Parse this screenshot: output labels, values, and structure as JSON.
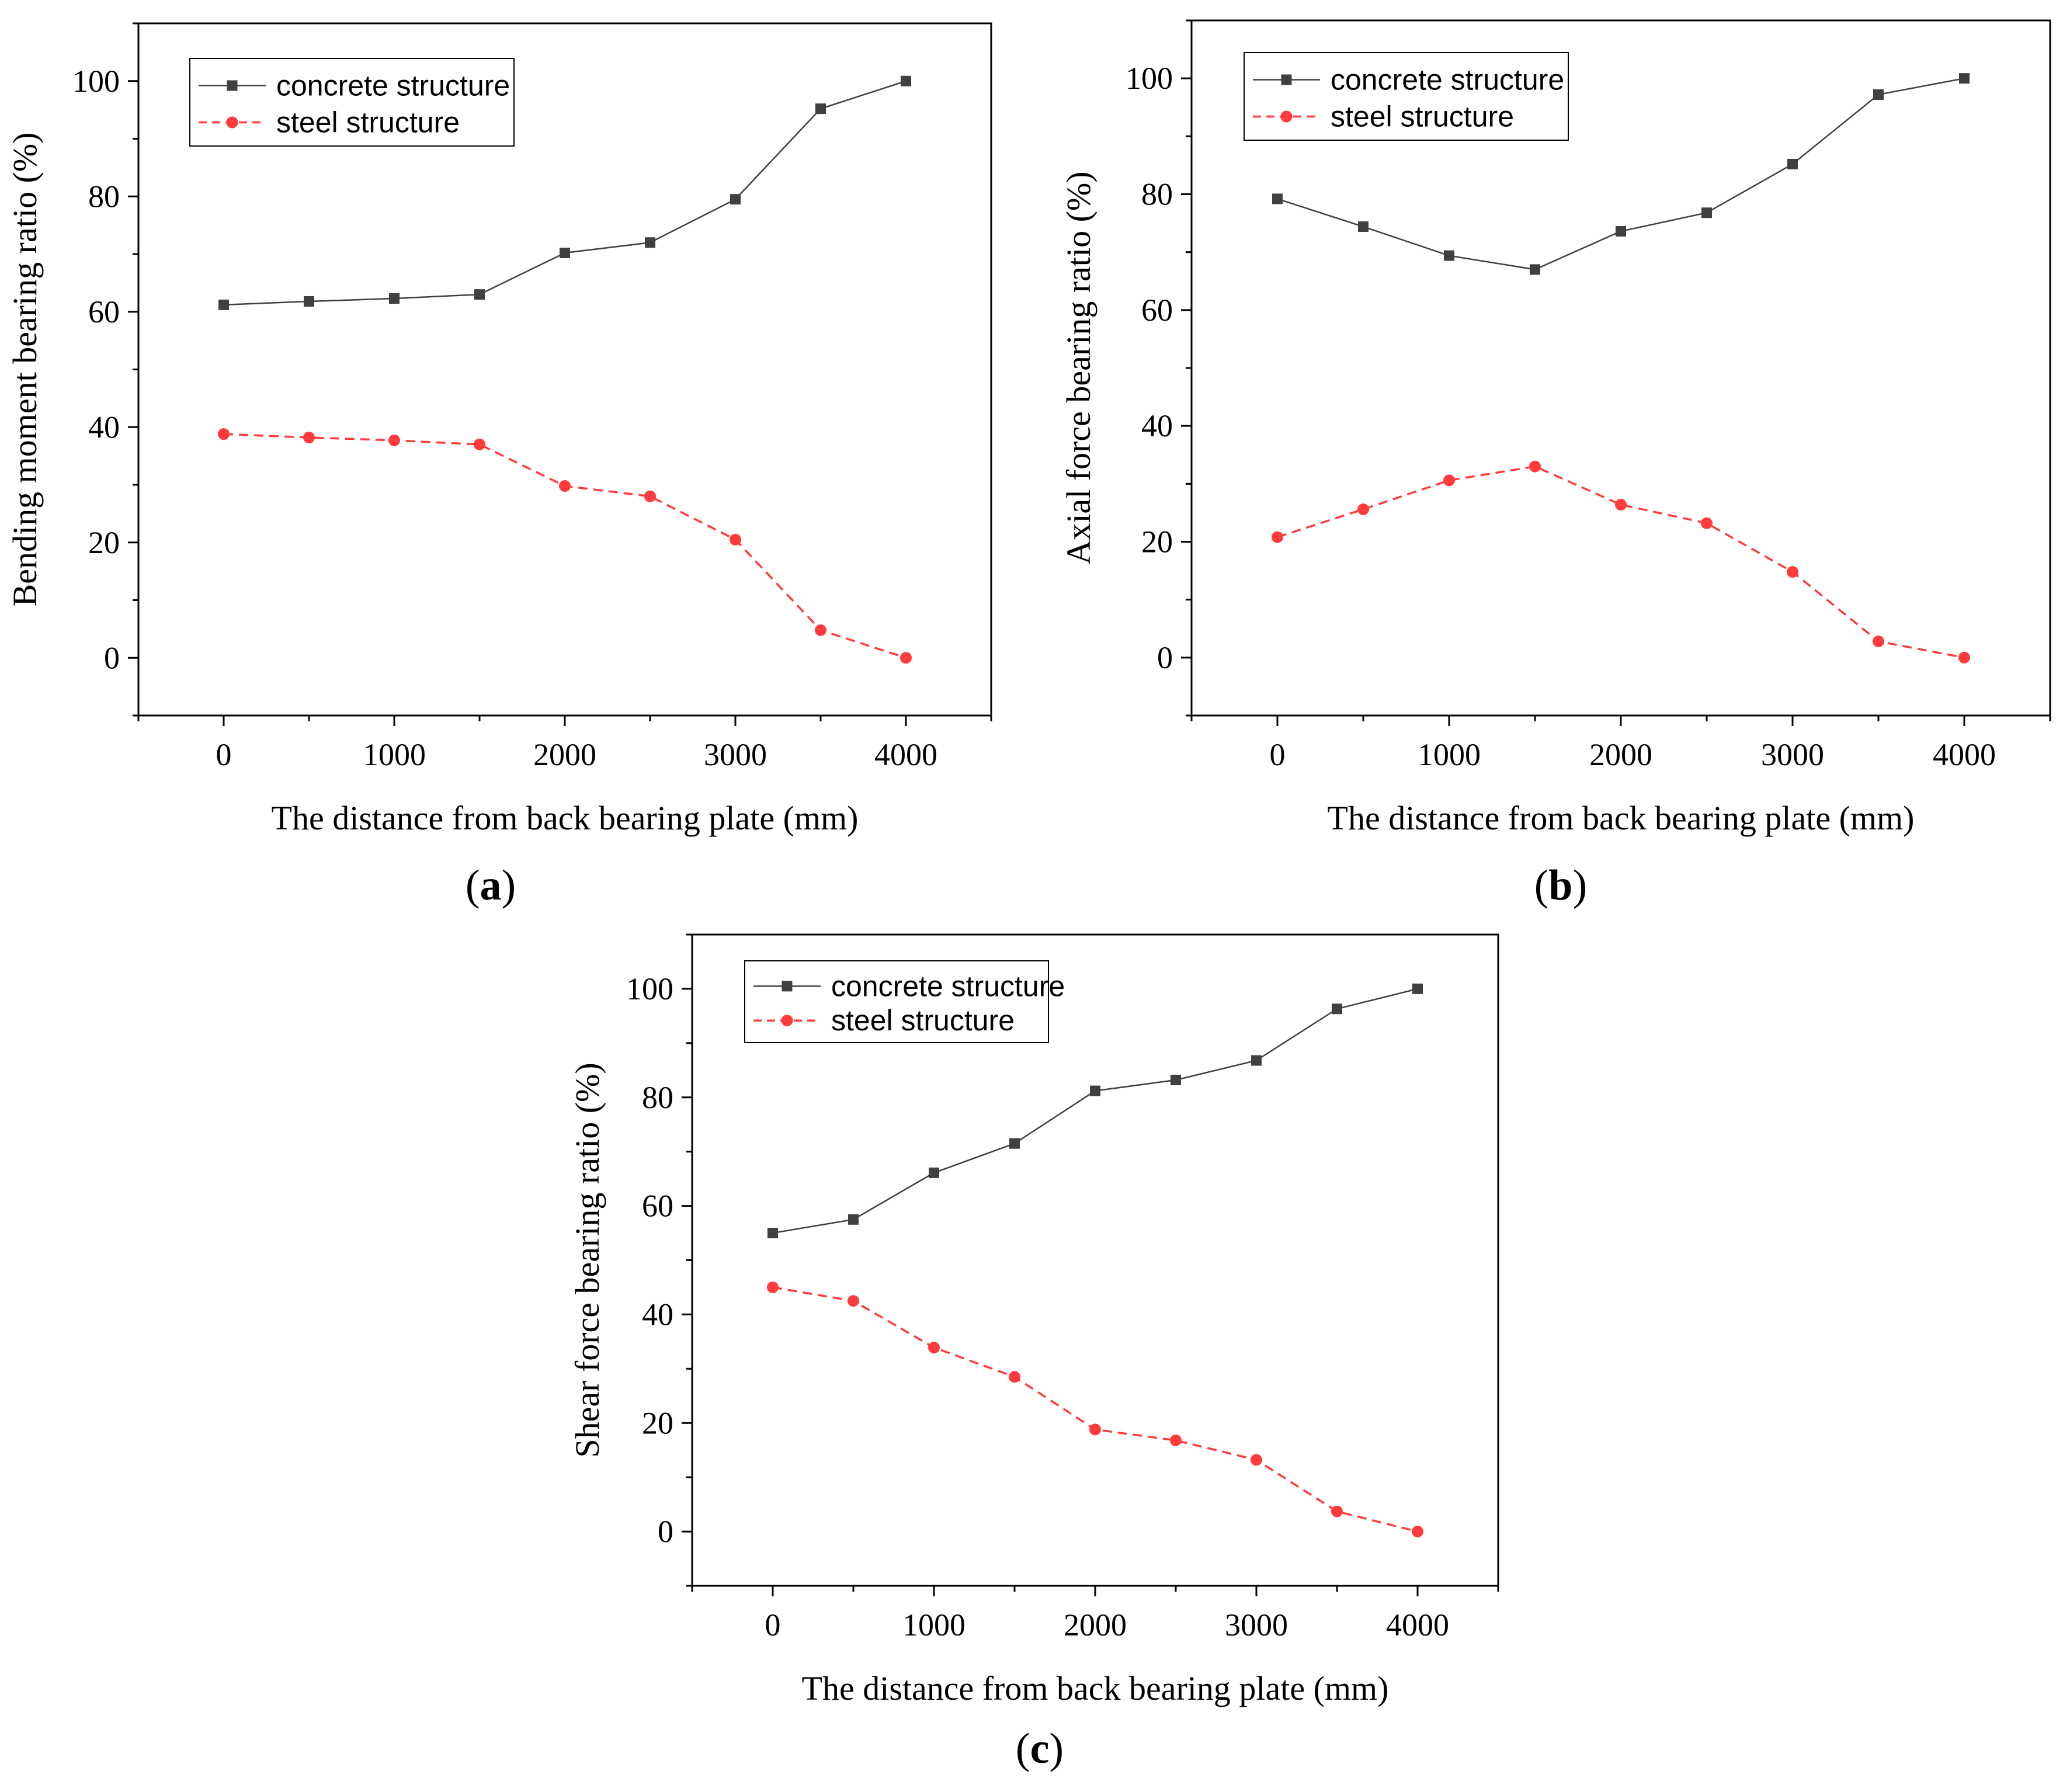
{
  "chart_data": [
    {
      "id": "a",
      "type": "line",
      "panel_label": "a",
      "xlabel": "The distance from back bearing plate (mm)",
      "ylabel": "Bending moment bearing ratio (%)",
      "xlim": [
        -500,
        4500
      ],
      "ylim": [
        -10,
        110
      ],
      "x_ticks": [
        0,
        1000,
        2000,
        3000,
        4000
      ],
      "y_ticks": [
        0,
        20,
        40,
        60,
        80,
        100
      ],
      "x": [
        0,
        500,
        1000,
        1500,
        2000,
        2500,
        3000,
        3500,
        4000
      ],
      "series": [
        {
          "name": "concrete structure",
          "color": "#404040",
          "line": "solid",
          "marker": "square",
          "values": [
            61.2,
            61.8,
            62.3,
            63.0,
            70.2,
            72.0,
            79.5,
            95.2,
            100.0
          ]
        },
        {
          "name": "steel structure",
          "color": "#ff3b3b",
          "line": "dashed",
          "marker": "circle",
          "values": [
            38.8,
            38.2,
            37.7,
            37.0,
            29.8,
            28.0,
            20.5,
            4.8,
            0.0
          ]
        }
      ],
      "legend": "top-left"
    },
    {
      "id": "b",
      "type": "line",
      "panel_label": "b",
      "xlabel": "The distance from back bearing plate (mm)",
      "ylabel": "Axial force bearing ratio (%)",
      "xlim": [
        -500,
        4500
      ],
      "ylim": [
        -10,
        110
      ],
      "x_ticks": [
        0,
        1000,
        2000,
        3000,
        4000
      ],
      "y_ticks": [
        0,
        20,
        40,
        60,
        80,
        100
      ],
      "x": [
        0,
        500,
        1000,
        1500,
        2000,
        2500,
        3000,
        3500,
        4000
      ],
      "series": [
        {
          "name": "concrete structure",
          "color": "#404040",
          "line": "solid",
          "marker": "square",
          "values": [
            79.2,
            74.4,
            69.4,
            67.0,
            73.6,
            76.8,
            85.2,
            97.2,
            100.0
          ]
        },
        {
          "name": "steel structure",
          "color": "#ff3b3b",
          "line": "dashed",
          "marker": "circle",
          "values": [
            20.8,
            25.6,
            30.6,
            33.0,
            26.4,
            23.2,
            14.8,
            2.8,
            0.0
          ]
        }
      ],
      "legend": "top-left"
    },
    {
      "id": "c",
      "type": "line",
      "panel_label": "c",
      "xlabel": "The distance from back bearing plate (mm)",
      "ylabel": "Shear force bearing ratio (%)",
      "xlim": [
        -500,
        4500
      ],
      "ylim": [
        -10,
        110
      ],
      "x_ticks": [
        0,
        1000,
        2000,
        3000,
        4000
      ],
      "y_ticks": [
        0,
        20,
        40,
        60,
        80,
        100
      ],
      "x": [
        0,
        500,
        1000,
        1500,
        2000,
        2500,
        3000,
        3500,
        4000
      ],
      "series": [
        {
          "name": "concrete structure",
          "color": "#404040",
          "line": "solid",
          "marker": "square",
          "values": [
            55.0,
            57.5,
            66.1,
            71.5,
            81.2,
            83.2,
            86.8,
            96.3,
            100.0
          ]
        },
        {
          "name": "steel structure",
          "color": "#ff3b3b",
          "line": "dashed",
          "marker": "circle",
          "values": [
            45.0,
            42.5,
            33.9,
            28.5,
            18.8,
            16.8,
            13.2,
            3.7,
            0.0
          ]
        }
      ],
      "legend": "top-left"
    }
  ]
}
